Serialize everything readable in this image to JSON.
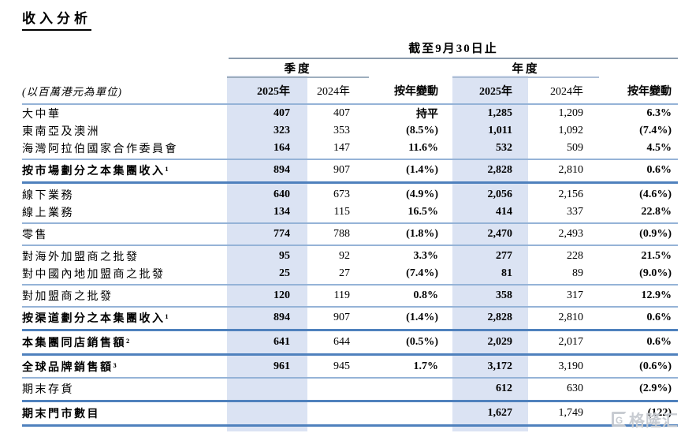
{
  "title": "收入分析",
  "table": {
    "period_header": "截至9月30日止",
    "unit_label": "(以百萬港元為單位)",
    "groups": {
      "quarter": "季度",
      "year": "年度"
    },
    "columns": {
      "q": [
        "2025年",
        "2024年",
        "按年變動"
      ],
      "y": [
        "2025年",
        "2024年",
        "按年變動"
      ]
    },
    "rows": [
      {
        "label": "大中華",
        "bold": false,
        "q2025": "407",
        "q2024": "407",
        "q_change": "持平",
        "y2025": "1,285",
        "y2024": "1,209",
        "y_change": "6.3%",
        "divider_after": null
      },
      {
        "label": "東南亞及澳洲",
        "bold": false,
        "q2025": "323",
        "q2024": "353",
        "q_change": "(8.5%)",
        "y2025": "1,011",
        "y2024": "1,092",
        "y_change": "(7.4%)",
        "divider_after": null
      },
      {
        "label": "海灣阿拉伯國家合作委員會",
        "bold": false,
        "q2025": "164",
        "q2024": "147",
        "q_change": "11.6%",
        "y2025": "532",
        "y2024": "509",
        "y_change": "4.5%",
        "divider_after": "thin"
      },
      {
        "label": "按市場劃分之本集團收入¹",
        "bold": true,
        "q2025": "894",
        "q2024": "907",
        "q_change": "(1.4%)",
        "y2025": "2,828",
        "y2024": "2,810",
        "y_change": "0.6%",
        "divider_after": "thick"
      },
      {
        "label": "線下業務",
        "bold": false,
        "q2025": "640",
        "q2024": "673",
        "q_change": "(4.9%)",
        "y2025": "2,056",
        "y2024": "2,156",
        "y_change": "(4.6%)",
        "divider_after": null
      },
      {
        "label": "線上業務",
        "bold": false,
        "q2025": "134",
        "q2024": "115",
        "q_change": "16.5%",
        "y2025": "414",
        "y2024": "337",
        "y_change": "22.8%",
        "divider_after": "thin"
      },
      {
        "label": "零售",
        "bold": false,
        "q2025": "774",
        "q2024": "788",
        "q_change": "(1.8%)",
        "y2025": "2,470",
        "y2024": "2,493",
        "y_change": "(0.9%)",
        "divider_after": "thin"
      },
      {
        "label": "對海外加盟商之批發",
        "bold": false,
        "q2025": "95",
        "q2024": "92",
        "q_change": "3.3%",
        "y2025": "277",
        "y2024": "228",
        "y_change": "21.5%",
        "divider_after": null
      },
      {
        "label": "對中國內地加盟商之批發",
        "bold": false,
        "q2025": "25",
        "q2024": "27",
        "q_change": "(7.4%)",
        "y2025": "81",
        "y2024": "89",
        "y_change": "(9.0%)",
        "divider_after": "thin"
      },
      {
        "label": "對加盟商之批發",
        "bold": false,
        "q2025": "120",
        "q2024": "119",
        "q_change": "0.8%",
        "y2025": "358",
        "y2024": "317",
        "y_change": "12.9%",
        "divider_after": "thin"
      },
      {
        "label": "按渠道劃分之本集團收入¹",
        "bold": true,
        "q2025": "894",
        "q2024": "907",
        "q_change": "(1.4%)",
        "y2025": "2,828",
        "y2024": "2,810",
        "y_change": "0.6%",
        "divider_after": "thick"
      },
      {
        "label": "本集團同店銷售額²",
        "bold": true,
        "q2025": "641",
        "q2024": "644",
        "q_change": "(0.5%)",
        "y2025": "2,029",
        "y2024": "2,017",
        "y_change": "0.6%",
        "divider_after": "thick"
      },
      {
        "label": "全球品牌銷售額³",
        "bold": true,
        "q2025": "961",
        "q2024": "945",
        "q_change": "1.7%",
        "y2025": "3,172",
        "y2024": "3,190",
        "y_change": "(0.6%)",
        "divider_after": "thin"
      },
      {
        "label": "期末存貨",
        "bold": false,
        "q2025": "",
        "q2024": "",
        "q_change": "",
        "y2025": "612",
        "y2024": "630",
        "y_change": "(2.9%)",
        "divider_after": "thick"
      },
      {
        "label": "期末門市數目",
        "bold": true,
        "q2025": "",
        "q2024": "",
        "q_change": "",
        "y2025": "1,627",
        "y2024": "1,749",
        "y_change": "(122)",
        "divider_after": "thick"
      }
    ]
  },
  "watermark": {
    "icon": "G",
    "text": "格隆汇"
  },
  "colors": {
    "highlight_band": "#dbe3f3",
    "divider_thin": "#95b3d7",
    "divider_thick": "#4f81bd",
    "header_rule": "#8c9cae",
    "text": "#000000",
    "watermark": "#c6cad0"
  }
}
